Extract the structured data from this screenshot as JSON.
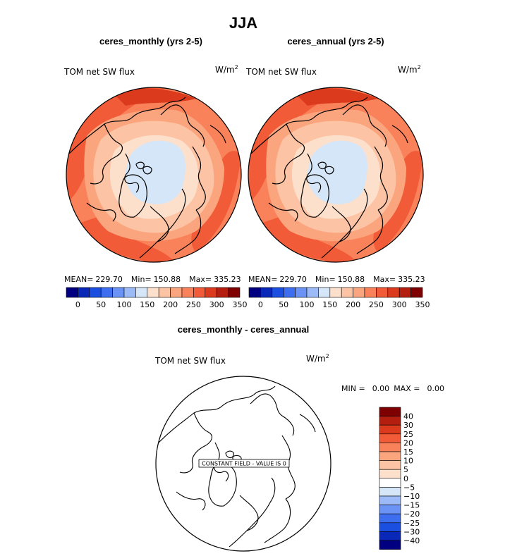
{
  "figure": {
    "season": "JJA",
    "units_base": "W/m",
    "units_exp": "2"
  },
  "chart_data": [
    {
      "type": "heatmap",
      "projection": "polar-stereographic-north",
      "panel": "top-left",
      "title": "ceres_monthly (yrs 2-5)",
      "variable_label": "TOM net SW flux",
      "stats": {
        "mean_label": "MEAN=",
        "mean": "229.70",
        "min_label": "Min=",
        "min": "150.88",
        "max_label": "Max=",
        "max": "335.23"
      },
      "colorbar": {
        "orientation": "horizontal",
        "colors": [
          "#000080",
          "#0a28b8",
          "#1a4fe0",
          "#3d6ef0",
          "#6a93f5",
          "#9cbaf7",
          "#d4e6f7",
          "#fde0cc",
          "#fcc3a4",
          "#fba57f",
          "#f9825a",
          "#f15b38",
          "#dc3a1c",
          "#b31e0e",
          "#7f0000"
        ],
        "tick_labels": [
          "0",
          "50",
          "100",
          "150",
          "200",
          "250",
          "300",
          "350"
        ]
      }
    },
    {
      "type": "heatmap",
      "projection": "polar-stereographic-north",
      "panel": "top-right",
      "title": "ceres_annual (yrs 2-5)",
      "variable_label": "TOM net SW flux",
      "stats": {
        "mean_label": "MEAN=",
        "mean": "229.70",
        "min_label": "Min=",
        "min": "150.88",
        "max_label": "Max=",
        "max": "335.23"
      },
      "colorbar": {
        "orientation": "horizontal",
        "colors": [
          "#000080",
          "#0a28b8",
          "#1a4fe0",
          "#3d6ef0",
          "#6a93f5",
          "#9cbaf7",
          "#d4e6f7",
          "#fde0cc",
          "#fcc3a4",
          "#fba57f",
          "#f9825a",
          "#f15b38",
          "#dc3a1c",
          "#b31e0e",
          "#7f0000"
        ],
        "tick_labels": [
          "0",
          "50",
          "100",
          "150",
          "200",
          "250",
          "300",
          "350"
        ]
      }
    },
    {
      "type": "heatmap",
      "projection": "polar-stereographic-north",
      "panel": "bottom",
      "title": "ceres_monthly - ceres_annual",
      "variable_label": "TOM net SW flux",
      "annotation": "CONSTANT FIELD - VALUE IS 0",
      "stats": {
        "min_label": "MIN =",
        "min": "0.00",
        "max_label": "MAX =",
        "max": "0.00"
      },
      "colorbar": {
        "orientation": "vertical",
        "colors_top_to_bottom": [
          "#7f0000",
          "#b31e0e",
          "#dc3a1c",
          "#f15b38",
          "#f9825a",
          "#fba57f",
          "#fcc3a4",
          "#fde0cc",
          "#ffffff",
          "#d4e6f7",
          "#9cbaf7",
          "#6a93f5",
          "#3d6ef0",
          "#1a4fe0",
          "#0a28b8",
          "#000080"
        ],
        "tick_labels": [
          "40",
          "30",
          "25",
          "20",
          "15",
          "10",
          "5",
          "0",
          "−5",
          "−10",
          "−15",
          "−20",
          "−25",
          "−30",
          "−40"
        ]
      }
    }
  ]
}
